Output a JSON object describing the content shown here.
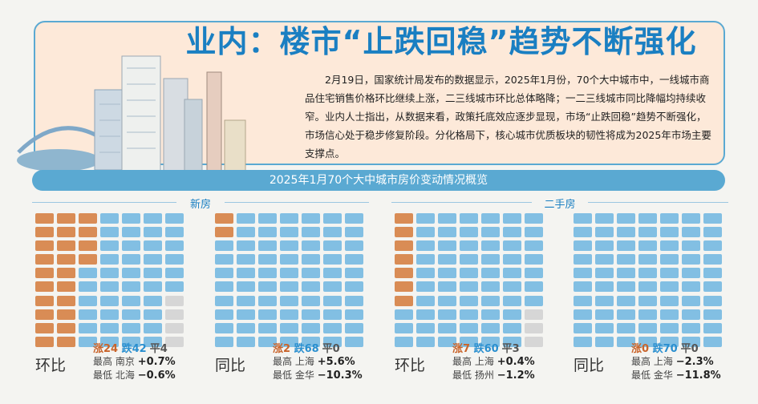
{
  "title": "业内：楼市“止跌回稳”趋势不断强化",
  "intro": "2月19日，国家统计局发布的数据显示，2025年1月份，70个大中城市中，一线城市商品住宅销售价格环比继续上涨，二三线城市环比总体略降；一二三线城市同比降幅均持续收窄。业内人士指出，从数据来看，政策托底效应逐步显现，市场“止跌回稳”趋势不断强化，市场信心处于稳步修复阶段。分化格局下，核心城市优质板块的韧性将成为2025年市场主要支撑点。",
  "banner": "2025年1月70个大中城市房价变动情况概览",
  "sections": {
    "new": "新房",
    "used": "二手房"
  },
  "colors": {
    "up": "#d98c55",
    "down": "#82bfe3",
    "flat": "#d6d6d6",
    "accent": "#1a7fc2"
  },
  "panels": [
    {
      "label": "环比",
      "up": 24,
      "down": 42,
      "flat": 4,
      "up_text": "涨24",
      "down_text": "跌42",
      "flat_text": "平4",
      "high_label": "最高",
      "high_city": "南京",
      "high_value": "+0.7%",
      "low_label": "最低",
      "low_city": "北海",
      "low_value": "−0.6%"
    },
    {
      "label": "同比",
      "up": 2,
      "down": 68,
      "flat": 0,
      "up_text": "涨2",
      "down_text": "跌68",
      "flat_text": "平0",
      "high_label": "最高",
      "high_city": "上海",
      "high_value": "+5.6%",
      "low_label": "最低",
      "low_city": "金华",
      "low_value": "−10.3%"
    },
    {
      "label": "环比",
      "up": 7,
      "down": 60,
      "flat": 3,
      "up_text": "涨7",
      "down_text": "跌60",
      "flat_text": "平3",
      "high_label": "最高",
      "high_city": "上海",
      "high_value": "+0.4%",
      "low_label": "最低",
      "low_city": "扬州",
      "low_value": "−1.2%"
    },
    {
      "label": "同比",
      "up": 0,
      "down": 70,
      "flat": 0,
      "up_text": "涨0",
      "down_text": "跌70",
      "flat_text": "平0",
      "high_label": "最高",
      "high_city": "上海",
      "high_value": "−2.3%",
      "low_label": "最低",
      "low_city": "金华",
      "low_value": "−11.8%"
    }
  ]
}
